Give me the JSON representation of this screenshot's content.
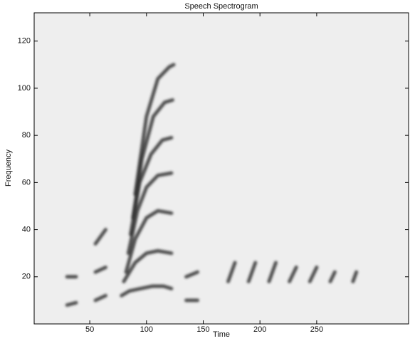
{
  "chart_data": {
    "type": "spectrogram",
    "title": "Speech Spectrogram",
    "x_label": "Time",
    "y_label": "Frequency",
    "color": "#2b2b2b",
    "xlim": [
      1,
      331
    ],
    "ylim": [
      0,
      132
    ],
    "xticks": [
      50,
      100,
      150,
      200,
      250
    ],
    "yticks": [
      20,
      40,
      60,
      80,
      100,
      120
    ],
    "series": [
      {
        "x": [
          78,
          85,
          95,
          105,
          115,
          122
        ],
        "values": [
          12,
          14,
          15,
          16,
          16,
          15
        ]
      },
      {
        "x": [
          80,
          90,
          100,
          110,
          122
        ],
        "values": [
          18,
          26,
          30,
          31,
          30
        ]
      },
      {
        "x": [
          82,
          90,
          100,
          110,
          122
        ],
        "values": [
          22,
          36,
          45,
          48,
          47
        ]
      },
      {
        "x": [
          84,
          92,
          100,
          110,
          122
        ],
        "values": [
          30,
          48,
          58,
          63,
          64
        ]
      },
      {
        "x": [
          86,
          94,
          104,
          114,
          122
        ],
        "values": [
          38,
          60,
          72,
          78,
          79
        ]
      },
      {
        "x": [
          88,
          96,
          106,
          116,
          123
        ],
        "values": [
          45,
          70,
          88,
          94,
          95
        ]
      },
      {
        "x": [
          90,
          100,
          110,
          120,
          124
        ],
        "values": [
          55,
          88,
          104,
          109,
          110
        ]
      },
      {
        "x": [
          30,
          38
        ],
        "values": [
          8,
          9
        ]
      },
      {
        "x": [
          30,
          38
        ],
        "values": [
          20,
          20
        ]
      },
      {
        "x": [
          55,
          64
        ],
        "values": [
          10,
          12
        ]
      },
      {
        "x": [
          55,
          64
        ],
        "values": [
          22,
          24
        ]
      },
      {
        "x": [
          55,
          64
        ],
        "values": [
          34,
          40
        ]
      },
      {
        "x": [
          135,
          145
        ],
        "values": [
          10,
          10
        ]
      },
      {
        "x": [
          135,
          145
        ],
        "values": [
          20,
          22
        ]
      },
      {
        "x": [
          172,
          178
        ],
        "values": [
          18,
          26
        ]
      },
      {
        "x": [
          190,
          196
        ],
        "values": [
          18,
          26
        ]
      },
      {
        "x": [
          208,
          214
        ],
        "values": [
          18,
          26
        ]
      },
      {
        "x": [
          226,
          232
        ],
        "values": [
          18,
          24
        ]
      },
      {
        "x": [
          244,
          250
        ],
        "values": [
          18,
          24
        ]
      },
      {
        "x": [
          262,
          266
        ],
        "values": [
          18,
          22
        ]
      },
      {
        "x": [
          282,
          285
        ],
        "values": [
          18,
          22
        ]
      }
    ]
  }
}
